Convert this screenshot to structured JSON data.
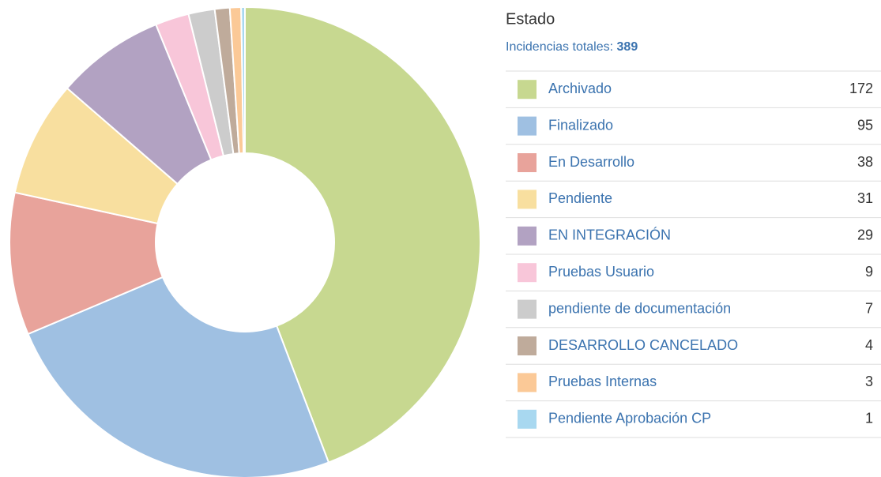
{
  "chart_data": {
    "type": "pie",
    "donut": true,
    "title": "Estado",
    "total_label": "Incidencias totales:",
    "total": 389,
    "categories": [
      "Archivado",
      "Finalizado",
      "En Desarrollo",
      "Pendiente",
      "EN INTEGRACIÓN",
      "Pruebas Usuario",
      "pendiente de documentación",
      "DESARROLLO CANCELADO",
      "Pruebas Internas",
      "Pendiente Aprobación CP"
    ],
    "values": [
      172,
      95,
      38,
      31,
      29,
      9,
      7,
      4,
      3,
      1
    ],
    "colors": [
      "#c7d890",
      "#9fc0e2",
      "#e8a39b",
      "#f8df9f",
      "#b2a2c2",
      "#f8c6d9",
      "#cccccc",
      "#bfab9b",
      "#fbc997",
      "#a8d8f0"
    ]
  }
}
